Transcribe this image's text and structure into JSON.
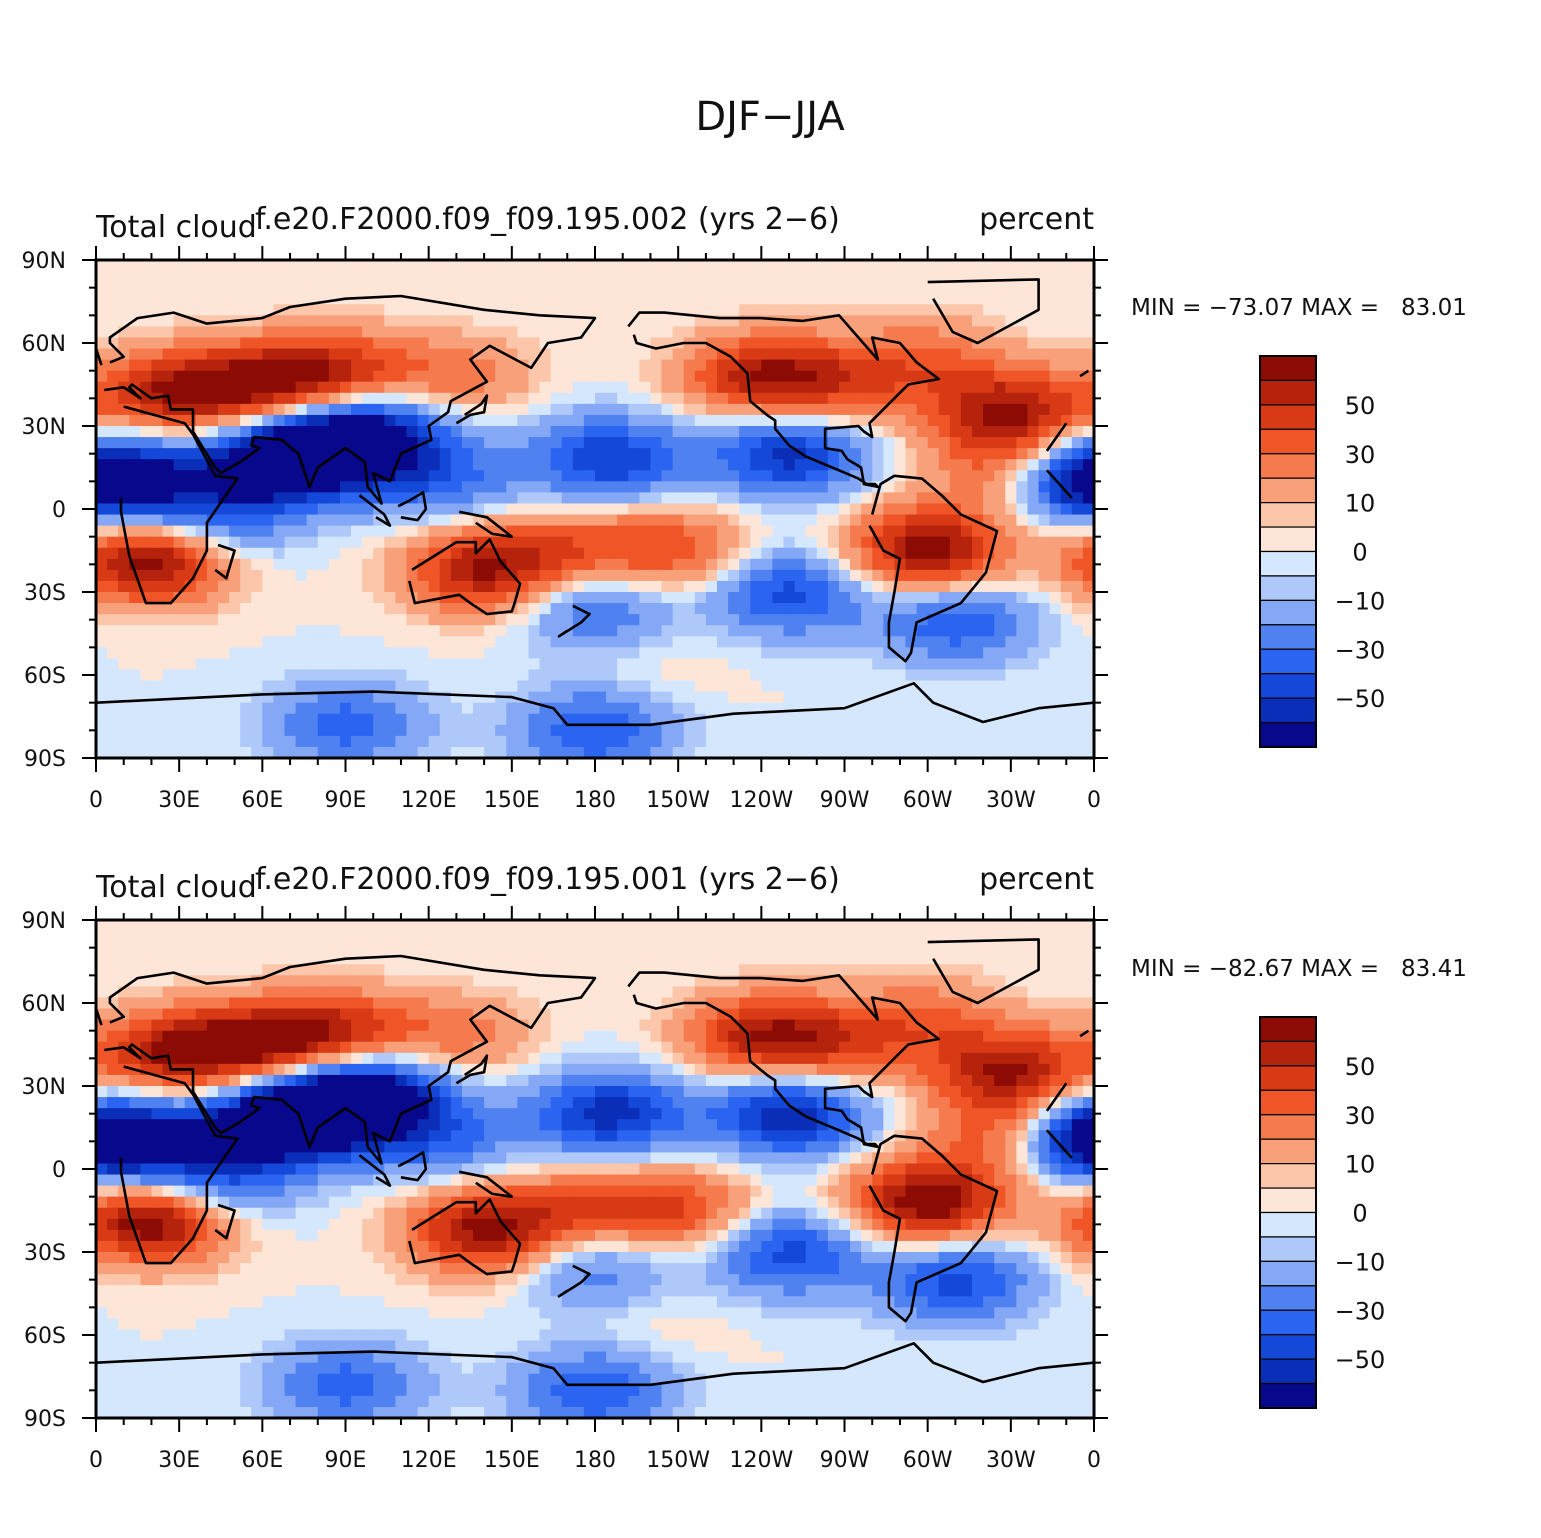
{
  "figure_title": "DJF−JJA",
  "colors": {
    "scale": [
      "#08088c",
      "#0b2eb8",
      "#1448d8",
      "#2a64f0",
      "#4f82f0",
      "#84a8f6",
      "#aec8fa",
      "#d5e7fc",
      "#fde6d8",
      "#fbc6aa",
      "#f8a07a",
      "#f57b4f",
      "#ef5526",
      "#d83a16",
      "#b6230d",
      "#8c0b05"
    ],
    "coastline": "#000000",
    "frame": "#000000"
  },
  "panels": [
    {
      "left_label": "Total cloud",
      "center_label": "f.e20.F2000.f09_f09.195.002 (yrs 2−6)",
      "right_label": "percent",
      "min_max": "MIN = −73.07 MAX =   83.01",
      "min": -73.07,
      "max": 83.01
    },
    {
      "left_label": "Total cloud",
      "center_label": "f.e20.F2000.f09_f09.195.001 (yrs 2−6)",
      "right_label": "percent",
      "min_max": "MIN = −82.67 MAX =   83.41",
      "min": -82.67,
      "max": 83.41
    }
  ],
  "colorbar_labels": [
    "50",
    "30",
    "10",
    "0",
    "−10",
    "−30",
    "−50"
  ],
  "lat_labels": [
    "90N",
    "60N",
    "30N",
    "0",
    "30S",
    "60S",
    "90S"
  ],
  "lon_labels": [
    "0",
    "30E",
    "60E",
    "90E",
    "120E",
    "150E",
    "180",
    "150W",
    "120W",
    "90W",
    "60W",
    "30W",
    "0"
  ],
  "chart_data": [
    {
      "type": "heatmap",
      "title": "Total cloud  f.e20.F2000.f09_f09.195.002 (yrs 2−6)  percent",
      "variable": "Total cloud DJF−JJA difference",
      "units": "percent",
      "min": -73.07,
      "max": 83.01,
      "levels": [
        -70,
        -60,
        -50,
        -40,
        -30,
        -20,
        -10,
        -5,
        0,
        5,
        10,
        20,
        30,
        40,
        50,
        60,
        70
      ],
      "xlim": [
        0,
        360
      ],
      "ylim": [
        -90,
        90
      ],
      "anomalies": [
        {
          "lon": 20,
          "lat": -18,
          "value": 75
        },
        {
          "lon": 40,
          "lat": -5,
          "value": -35
        },
        {
          "lon": 30,
          "lat": 42,
          "value": 60
        },
        {
          "lon": 65,
          "lat": 45,
          "value": 55
        },
        {
          "lon": 90,
          "lat": 50,
          "value": 35
        },
        {
          "lon": 80,
          "lat": 22,
          "value": -70
        },
        {
          "lon": 100,
          "lat": 27,
          "value": -55
        },
        {
          "lon": 60,
          "lat": 15,
          "value": -55
        },
        {
          "lon": 10,
          "lat": 10,
          "value": -50
        },
        {
          "lon": 140,
          "lat": -22,
          "value": 60
        },
        {
          "lon": 175,
          "lat": -15,
          "value": 30
        },
        {
          "lon": 210,
          "lat": -15,
          "value": 35
        },
        {
          "lon": 185,
          "lat": 18,
          "value": -50
        },
        {
          "lon": 250,
          "lat": 20,
          "value": -55
        },
        {
          "lon": 300,
          "lat": -15,
          "value": 70
        },
        {
          "lon": 330,
          "lat": 35,
          "value": 60
        },
        {
          "lon": 240,
          "lat": 48,
          "value": 55
        },
        {
          "lon": 270,
          "lat": 45,
          "value": 30
        },
        {
          "lon": 300,
          "lat": 55,
          "value": 25
        },
        {
          "lon": 355,
          "lat": 12,
          "value": -55
        },
        {
          "lon": 330,
          "lat": 15,
          "value": 35
        },
        {
          "lon": 310,
          "lat": -40,
          "value": -40
        },
        {
          "lon": 250,
          "lat": -30,
          "value": -45
        },
        {
          "lon": 180,
          "lat": -35,
          "value": -35
        },
        {
          "lon": 130,
          "lat": 48,
          "value": 25
        },
        {
          "lon": 125,
          "lat": 10,
          "value": -30
        },
        {
          "lon": 200,
          "lat": -58,
          "value": 5
        },
        {
          "lon": 180,
          "lat": -80,
          "value": -40
        },
        {
          "lon": 90,
          "lat": -78,
          "value": -35
        }
      ]
    },
    {
      "type": "heatmap",
      "title": "Total cloud  f.e20.F2000.f09_f09.195.001 (yrs 2−6)  percent",
      "variable": "Total cloud DJF−JJA difference",
      "units": "percent",
      "min": -82.67,
      "max": 83.41,
      "levels": [
        -70,
        -60,
        -50,
        -40,
        -30,
        -20,
        -10,
        -5,
        0,
        5,
        10,
        20,
        30,
        40,
        50,
        60,
        70
      ],
      "xlim": [
        0,
        360
      ],
      "ylim": [
        -90,
        90
      ],
      "anomalies": [
        {
          "lon": 20,
          "lat": -18,
          "value": 78
        },
        {
          "lon": 40,
          "lat": -5,
          "value": -40
        },
        {
          "lon": 30,
          "lat": 42,
          "value": 62
        },
        {
          "lon": 65,
          "lat": 45,
          "value": 58
        },
        {
          "lon": 90,
          "lat": 50,
          "value": 35
        },
        {
          "lon": 80,
          "lat": 22,
          "value": -75
        },
        {
          "lon": 100,
          "lat": 27,
          "value": -60
        },
        {
          "lon": 60,
          "lat": 15,
          "value": -55
        },
        {
          "lon": 10,
          "lat": 10,
          "value": -55
        },
        {
          "lon": 140,
          "lat": -22,
          "value": 62
        },
        {
          "lon": 175,
          "lat": -15,
          "value": 30
        },
        {
          "lon": 210,
          "lat": -15,
          "value": 40
        },
        {
          "lon": 185,
          "lat": 20,
          "value": -55
        },
        {
          "lon": 250,
          "lat": 20,
          "value": -60
        },
        {
          "lon": 300,
          "lat": -12,
          "value": 72
        },
        {
          "lon": 330,
          "lat": 35,
          "value": 60
        },
        {
          "lon": 240,
          "lat": 48,
          "value": 55
        },
        {
          "lon": 270,
          "lat": 45,
          "value": 30
        },
        {
          "lon": 300,
          "lat": 55,
          "value": 25
        },
        {
          "lon": 355,
          "lat": 12,
          "value": -55
        },
        {
          "lon": 330,
          "lat": 12,
          "value": 40
        },
        {
          "lon": 310,
          "lat": -40,
          "value": -45
        },
        {
          "lon": 250,
          "lat": -30,
          "value": -45
        },
        {
          "lon": 180,
          "lat": -35,
          "value": -30
        },
        {
          "lon": 130,
          "lat": 48,
          "value": 25
        },
        {
          "lon": 125,
          "lat": 10,
          "value": -30
        },
        {
          "lon": 200,
          "lat": -58,
          "value": 5
        },
        {
          "lon": 180,
          "lat": -80,
          "value": -40
        },
        {
          "lon": 90,
          "lat": -78,
          "value": -35
        }
      ]
    }
  ]
}
